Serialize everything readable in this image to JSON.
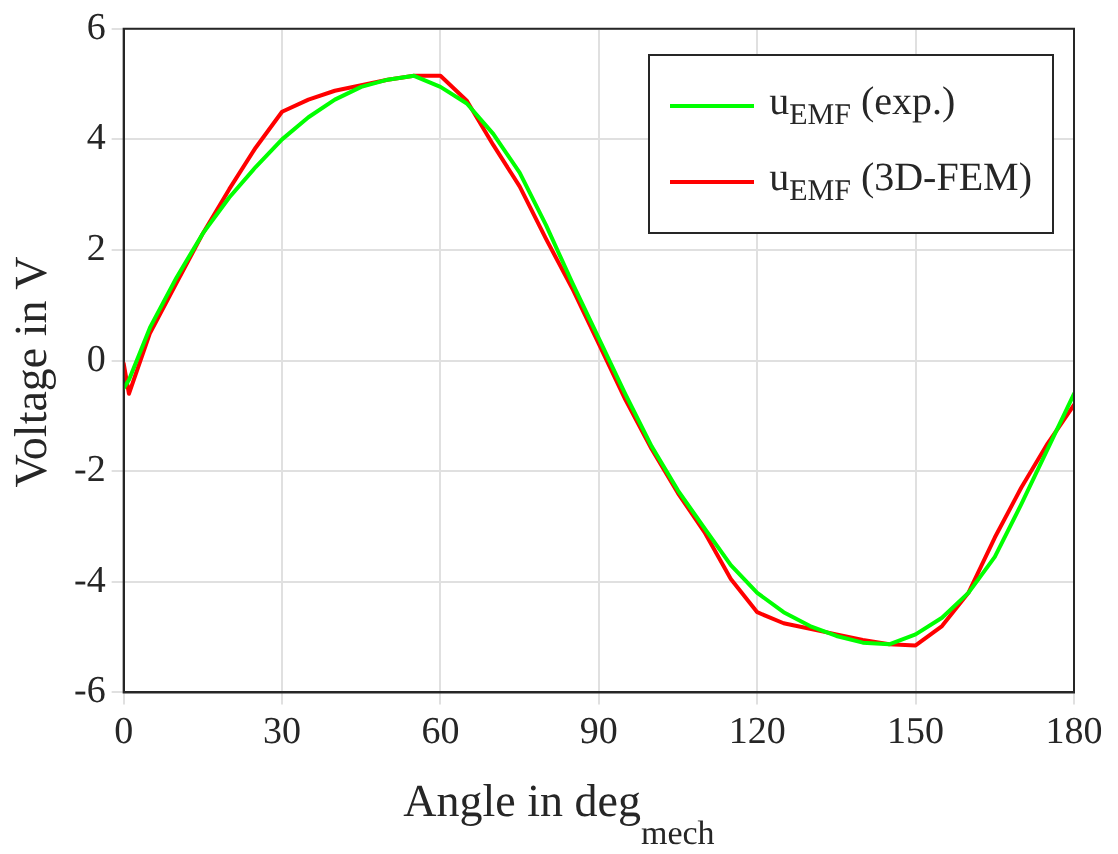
{
  "chart_data": {
    "type": "line",
    "xlabel": "Angle in deg$_{mech}$",
    "ylabel": "Voltage in V",
    "x": [
      0,
      1,
      5,
      10,
      15,
      20,
      25,
      30,
      35,
      40,
      45,
      50,
      55,
      60,
      65,
      70,
      75,
      80,
      85,
      90,
      95,
      100,
      105,
      110,
      115,
      120,
      125,
      130,
      135,
      140,
      145,
      150,
      155,
      160,
      165,
      170,
      175,
      180
    ],
    "series": [
      {
        "name": "u$_{EMF}$ (exp.)",
        "color": "#00ff00",
        "values": [
          -0.5,
          -0.35,
          0.6,
          1.5,
          2.3,
          2.95,
          3.5,
          4.0,
          4.4,
          4.72,
          4.95,
          5.08,
          5.15,
          4.95,
          4.65,
          4.1,
          3.4,
          2.45,
          1.4,
          0.4,
          -0.6,
          -1.55,
          -2.35,
          -3.03,
          -3.7,
          -4.2,
          -4.55,
          -4.8,
          -4.98,
          -5.1,
          -5.13,
          -4.95,
          -4.65,
          -4.2,
          -3.55,
          -2.6,
          -1.6,
          -0.6
        ]
      },
      {
        "name": "u$_{EMF}$ (3D-FEM)",
        "color": "#ff0000",
        "values": [
          -0.05,
          -0.6,
          0.5,
          1.4,
          2.3,
          3.1,
          3.85,
          4.5,
          4.72,
          4.88,
          4.98,
          5.08,
          5.15,
          5.15,
          4.7,
          3.9,
          3.15,
          2.2,
          1.3,
          0.3,
          -0.7,
          -1.6,
          -2.4,
          -3.1,
          -3.95,
          -4.55,
          -4.75,
          -4.85,
          -4.95,
          -5.05,
          -5.13,
          -5.15,
          -4.8,
          -4.2,
          -3.2,
          -2.3,
          -1.5,
          -0.8
        ]
      }
    ],
    "xlim": [
      0,
      180
    ],
    "xticks": [
      0,
      30,
      60,
      90,
      120,
      150,
      180
    ],
    "ylim": [
      -6,
      6
    ],
    "yticks": [
      -6,
      -4,
      -2,
      0,
      2,
      4,
      6
    ],
    "grid": true,
    "legend": "top right",
    "marker": "none",
    "line_style": "solid"
  }
}
